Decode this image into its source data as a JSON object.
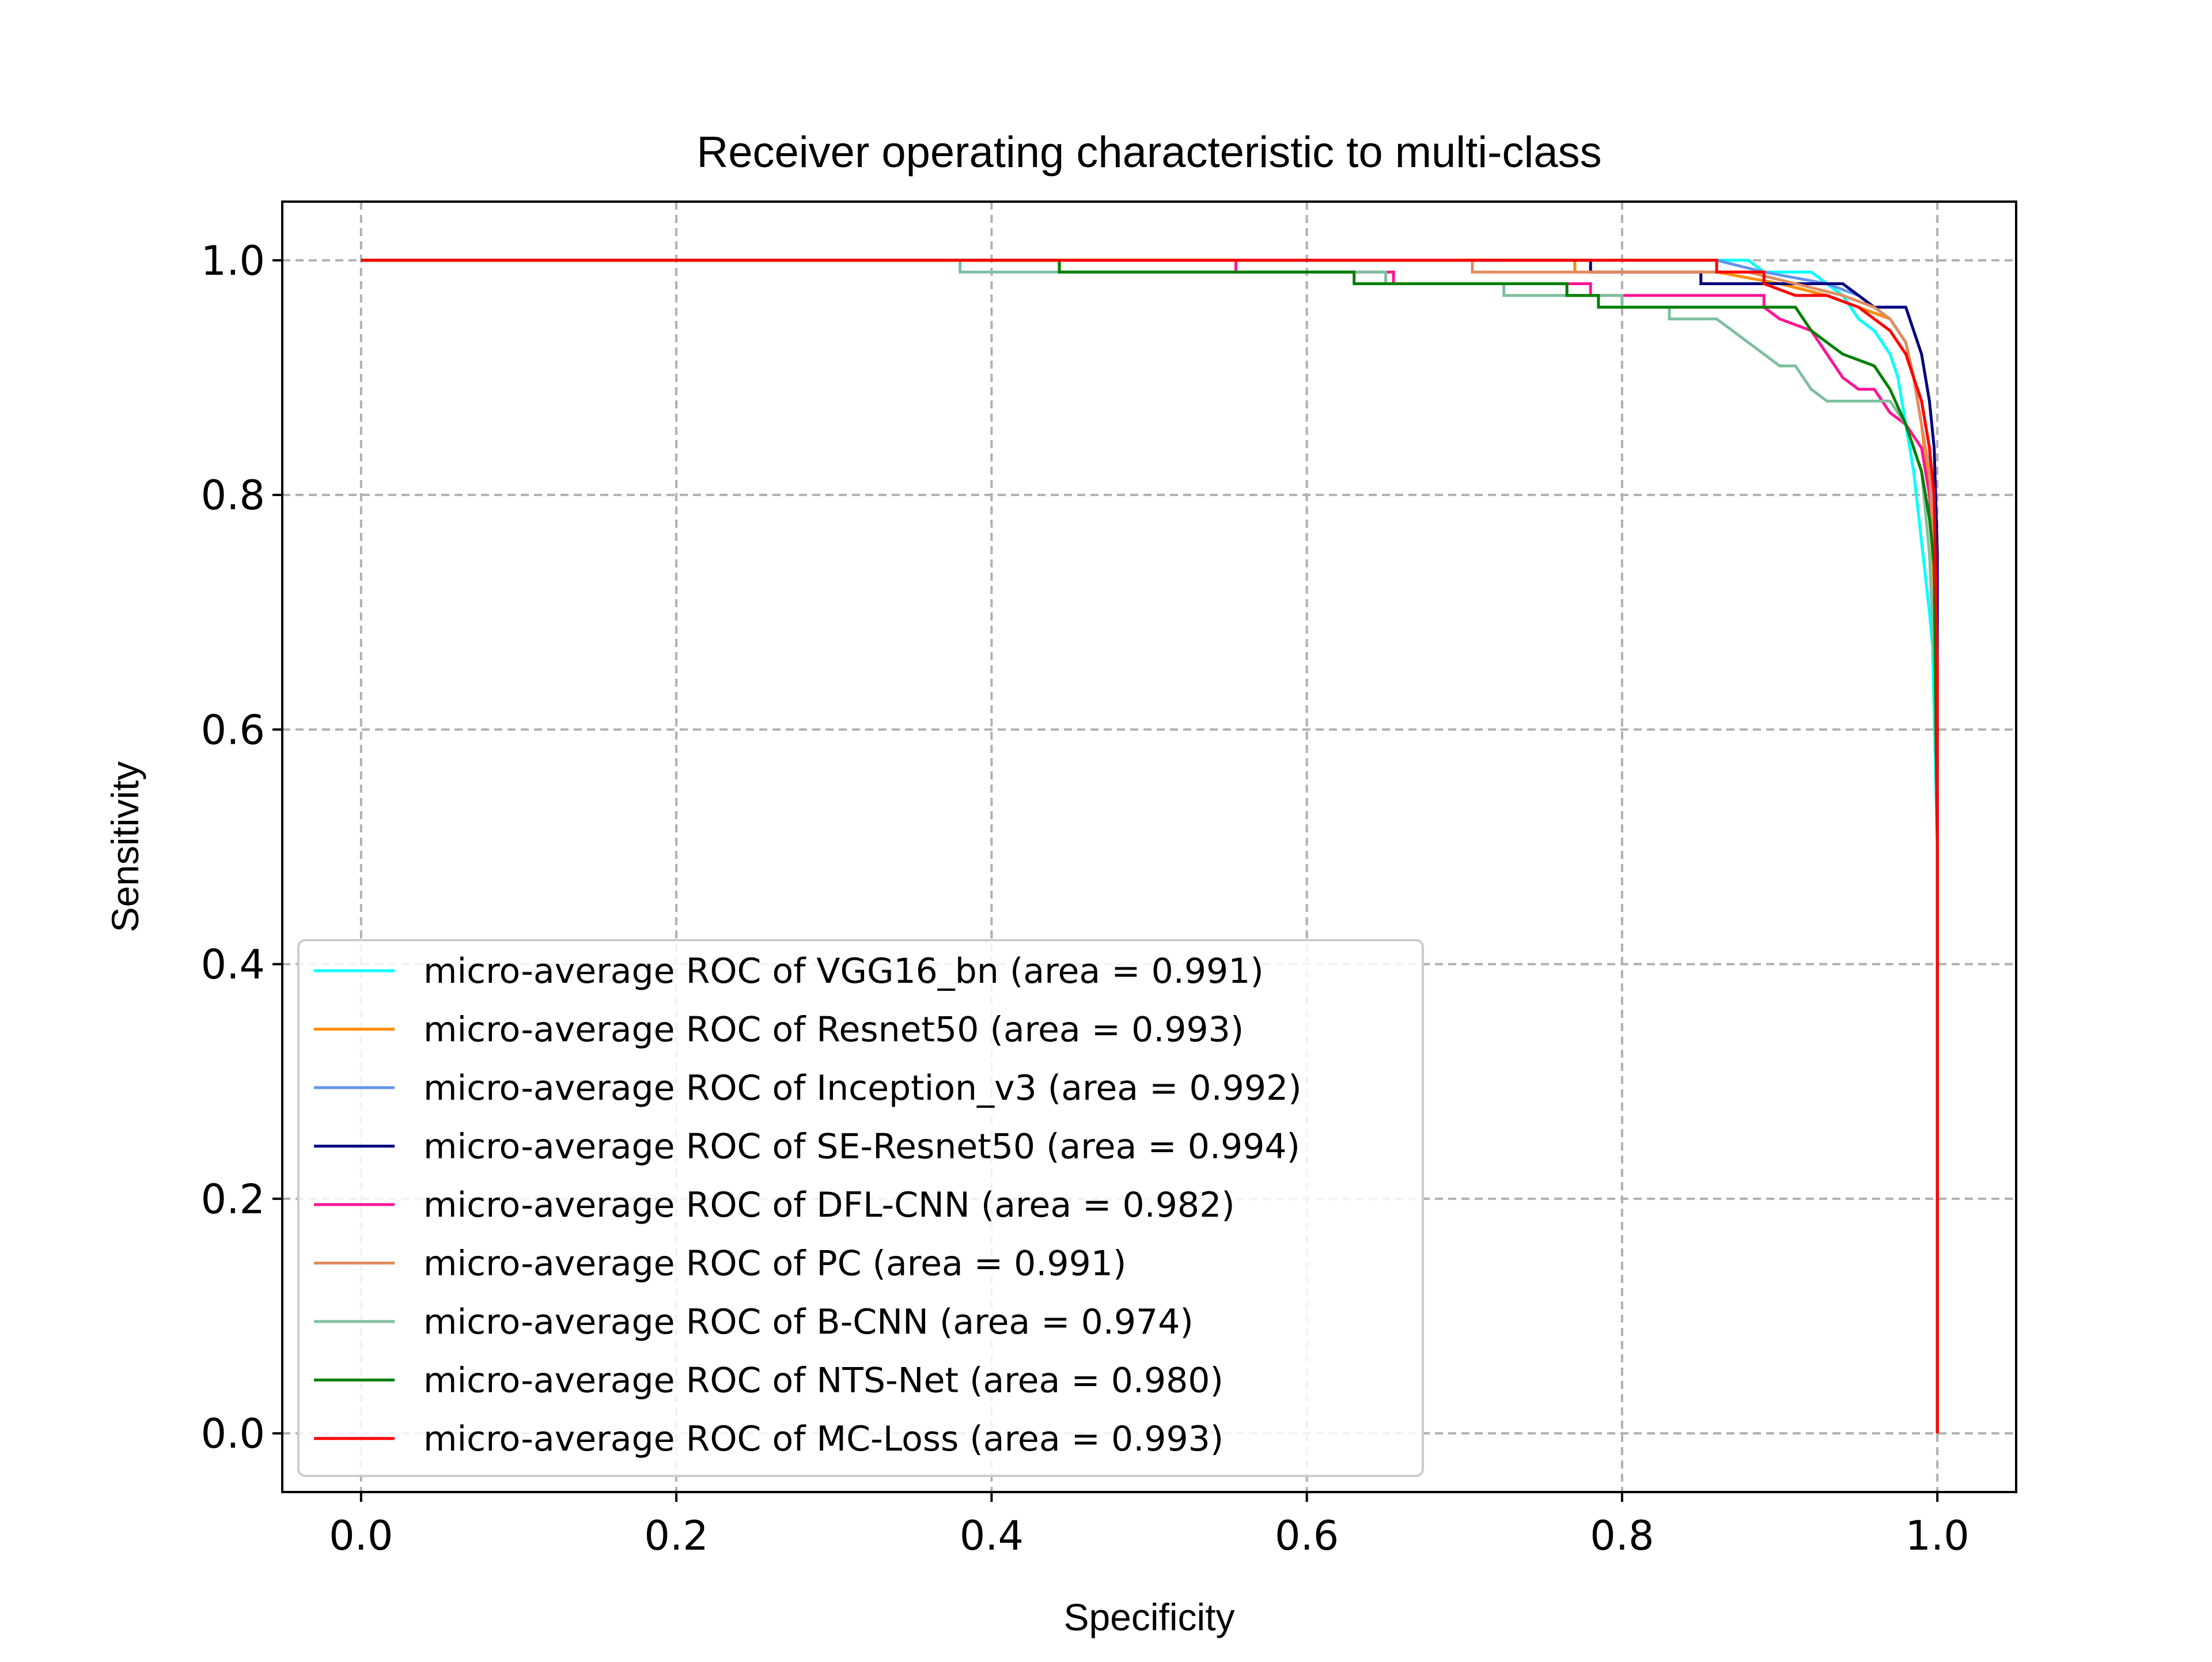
{
  "chart_data": {
    "type": "line",
    "title": "Receiver operating characteristic to multi-class",
    "xlabel": "Specificity",
    "ylabel": "Sensitivity",
    "xlim": [
      -0.05,
      1.05
    ],
    "ylim": [
      -0.05,
      1.05
    ],
    "xticks": [
      0.0,
      0.2,
      0.4,
      0.6,
      0.8,
      1.0
    ],
    "yticks": [
      0.0,
      0.2,
      0.4,
      0.6,
      0.8,
      1.0
    ],
    "xtick_labels": [
      "0.0",
      "0.2",
      "0.4",
      "0.6",
      "0.8",
      "1.0"
    ],
    "ytick_labels": [
      "0.0",
      "0.2",
      "0.4",
      "0.6",
      "0.8",
      "1.0"
    ],
    "grid": true,
    "legend_position": "lower-left",
    "series": [
      {
        "name": "micro-average ROC of VGG16_bn (area = 0.991)",
        "color": "#00ffff",
        "points": [
          [
            0.0,
            1.0
          ],
          [
            0.86,
            1.0
          ],
          [
            0.88,
            1.0
          ],
          [
            0.89,
            0.99
          ],
          [
            0.92,
            0.99
          ],
          [
            0.93,
            0.98
          ],
          [
            0.94,
            0.97
          ],
          [
            0.95,
            0.95
          ],
          [
            0.96,
            0.94
          ],
          [
            0.97,
            0.92
          ],
          [
            0.975,
            0.9
          ],
          [
            0.98,
            0.86
          ],
          [
            0.985,
            0.82
          ],
          [
            0.99,
            0.76
          ],
          [
            0.995,
            0.7
          ],
          [
            0.997,
            0.67
          ],
          [
            1.0,
            0.5
          ],
          [
            1.0,
            0.0
          ]
        ]
      },
      {
        "name": "micro-average ROC of Resnet50 (area = 0.993)",
        "color": "#ff8c00",
        "points": [
          [
            0.0,
            1.0
          ],
          [
            0.77,
            1.0
          ],
          [
            0.77,
            0.99
          ],
          [
            0.86,
            0.99
          ],
          [
            0.9,
            0.98
          ],
          [
            0.93,
            0.97
          ],
          [
            0.95,
            0.96
          ],
          [
            0.97,
            0.95
          ],
          [
            0.98,
            0.93
          ],
          [
            0.985,
            0.9
          ],
          [
            0.99,
            0.86
          ],
          [
            0.995,
            0.8
          ],
          [
            0.998,
            0.72
          ],
          [
            1.0,
            0.5
          ],
          [
            1.0,
            0.0
          ]
        ]
      },
      {
        "name": "micro-average ROC of Inception_v3 (area = 0.992)",
        "color": "#6495ed",
        "points": [
          [
            0.0,
            1.0
          ],
          [
            0.86,
            1.0
          ],
          [
            0.89,
            0.99
          ],
          [
            0.93,
            0.98
          ],
          [
            0.95,
            0.97
          ],
          [
            0.97,
            0.95
          ],
          [
            0.98,
            0.93
          ],
          [
            0.985,
            0.9
          ],
          [
            0.99,
            0.88
          ],
          [
            0.995,
            0.84
          ],
          [
            0.998,
            0.76
          ],
          [
            1.0,
            0.55
          ],
          [
            1.0,
            0.0
          ]
        ]
      },
      {
        "name": "micro-average ROC of SE-Resnet50 (area = 0.994)",
        "color": "#000080",
        "points": [
          [
            0.0,
            1.0
          ],
          [
            0.78,
            1.0
          ],
          [
            0.78,
            0.99
          ],
          [
            0.85,
            0.99
          ],
          [
            0.85,
            0.98
          ],
          [
            0.94,
            0.98
          ],
          [
            0.95,
            0.97
          ],
          [
            0.96,
            0.96
          ],
          [
            0.98,
            0.96
          ],
          [
            0.985,
            0.94
          ],
          [
            0.99,
            0.92
          ],
          [
            0.995,
            0.88
          ],
          [
            0.998,
            0.84
          ],
          [
            1.0,
            0.75
          ],
          [
            1.0,
            0.0
          ]
        ]
      },
      {
        "name": "micro-average ROC of DFL-CNN (area = 0.982)",
        "color": "#ff1493",
        "points": [
          [
            0.0,
            1.0
          ],
          [
            0.555,
            1.0
          ],
          [
            0.555,
            0.99
          ],
          [
            0.655,
            0.99
          ],
          [
            0.655,
            0.98
          ],
          [
            0.78,
            0.98
          ],
          [
            0.78,
            0.97
          ],
          [
            0.89,
            0.97
          ],
          [
            0.89,
            0.96
          ],
          [
            0.9,
            0.95
          ],
          [
            0.92,
            0.94
          ],
          [
            0.93,
            0.92
          ],
          [
            0.94,
            0.9
          ],
          [
            0.95,
            0.89
          ],
          [
            0.96,
            0.89
          ],
          [
            0.97,
            0.87
          ],
          [
            0.98,
            0.86
          ],
          [
            0.99,
            0.84
          ],
          [
            0.995,
            0.8
          ],
          [
            0.998,
            0.74
          ],
          [
            1.0,
            0.5
          ],
          [
            1.0,
            0.0
          ]
        ]
      },
      {
        "name": "micro-average ROC of PC (area = 0.991)",
        "color": "#e08c60",
        "points": [
          [
            0.0,
            1.0
          ],
          [
            0.705,
            1.0
          ],
          [
            0.705,
            0.99
          ],
          [
            0.85,
            0.99
          ],
          [
            0.88,
            0.99
          ],
          [
            0.91,
            0.98
          ],
          [
            0.94,
            0.97
          ],
          [
            0.96,
            0.96
          ],
          [
            0.97,
            0.95
          ],
          [
            0.98,
            0.93
          ],
          [
            0.985,
            0.9
          ],
          [
            0.99,
            0.86
          ],
          [
            0.995,
            0.82
          ],
          [
            0.998,
            0.75
          ],
          [
            1.0,
            0.55
          ],
          [
            1.0,
            0.0
          ]
        ]
      },
      {
        "name": "micro-average ROC of B-CNN (area = 0.974)",
        "color": "#7fbf9f",
        "points": [
          [
            0.0,
            1.0
          ],
          [
            0.38,
            1.0
          ],
          [
            0.38,
            0.99
          ],
          [
            0.65,
            0.99
          ],
          [
            0.65,
            0.98
          ],
          [
            0.725,
            0.98
          ],
          [
            0.725,
            0.97
          ],
          [
            0.8,
            0.97
          ],
          [
            0.8,
            0.96
          ],
          [
            0.83,
            0.96
          ],
          [
            0.83,
            0.95
          ],
          [
            0.86,
            0.95
          ],
          [
            0.87,
            0.94
          ],
          [
            0.88,
            0.93
          ],
          [
            0.89,
            0.92
          ],
          [
            0.9,
            0.91
          ],
          [
            0.91,
            0.91
          ],
          [
            0.92,
            0.89
          ],
          [
            0.93,
            0.88
          ],
          [
            0.97,
            0.88
          ],
          [
            0.98,
            0.86
          ],
          [
            0.99,
            0.82
          ],
          [
            0.995,
            0.75
          ],
          [
            1.0,
            0.6
          ],
          [
            1.0,
            0.0
          ]
        ]
      },
      {
        "name": "micro-average ROC of NTS-Net (area = 0.980)",
        "color": "#008000",
        "points": [
          [
            0.0,
            1.0
          ],
          [
            0.443,
            1.0
          ],
          [
            0.443,
            0.99
          ],
          [
            0.63,
            0.99
          ],
          [
            0.63,
            0.98
          ],
          [
            0.765,
            0.98
          ],
          [
            0.765,
            0.97
          ],
          [
            0.785,
            0.97
          ],
          [
            0.785,
            0.96
          ],
          [
            0.91,
            0.96
          ],
          [
            0.92,
            0.94
          ],
          [
            0.93,
            0.93
          ],
          [
            0.94,
            0.92
          ],
          [
            0.96,
            0.91
          ],
          [
            0.97,
            0.89
          ],
          [
            0.98,
            0.86
          ],
          [
            0.985,
            0.84
          ],
          [
            0.99,
            0.82
          ],
          [
            0.995,
            0.78
          ],
          [
            0.998,
            0.74
          ],
          [
            1.0,
            0.5
          ],
          [
            1.0,
            0.0
          ]
        ]
      },
      {
        "name": "micro-average ROC of MC-Loss (area = 0.993)",
        "color": "#ff0000",
        "points": [
          [
            0.0,
            1.0
          ],
          [
            0.86,
            1.0
          ],
          [
            0.86,
            0.99
          ],
          [
            0.89,
            0.99
          ],
          [
            0.89,
            0.98
          ],
          [
            0.91,
            0.97
          ],
          [
            0.93,
            0.97
          ],
          [
            0.95,
            0.96
          ],
          [
            0.96,
            0.95
          ],
          [
            0.97,
            0.94
          ],
          [
            0.98,
            0.92
          ],
          [
            0.985,
            0.9
          ],
          [
            0.99,
            0.88
          ],
          [
            0.995,
            0.84
          ],
          [
            0.998,
            0.8
          ],
          [
            1.0,
            0.65
          ],
          [
            1.0,
            0.0
          ]
        ]
      }
    ]
  }
}
